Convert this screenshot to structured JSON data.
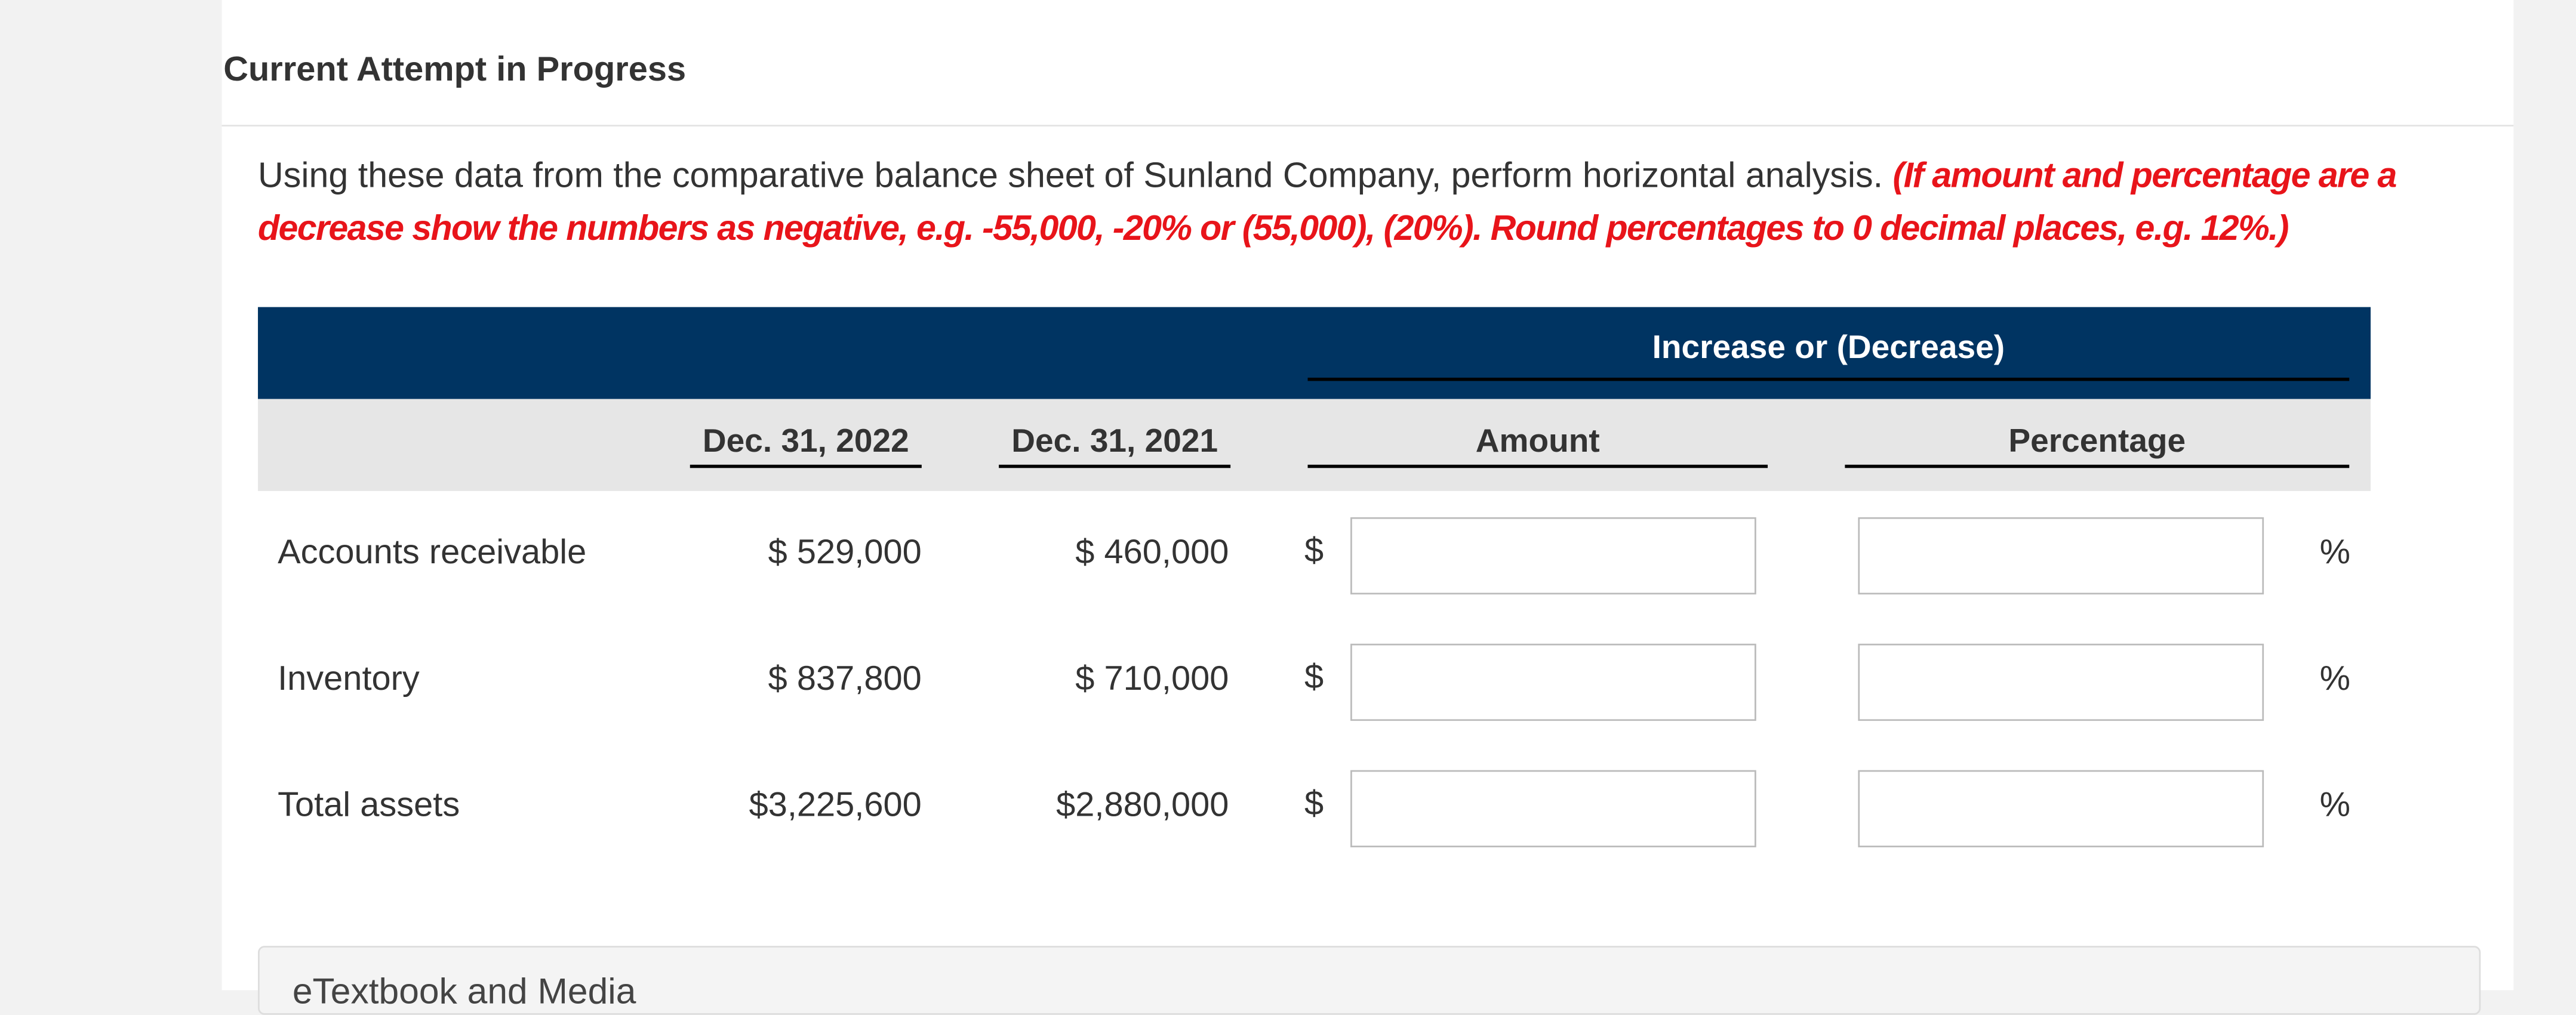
{
  "header": {
    "title": "Current Attempt in Progress"
  },
  "instructions": {
    "text": "Using these data from the comparative balance sheet of Sunland Company, perform horizontal analysis.",
    "note": "(If amount and percentage are a decrease show the numbers as negative, e.g. -55,000, -20% or (55,000), (20%). Round percentages to 0 decimal places, e.g. 12%.)"
  },
  "table": {
    "group_header": "Increase or (Decrease)",
    "columns": [
      "Dec. 31, 2022",
      "Dec. 31, 2021",
      "Amount",
      "Percentage"
    ],
    "amount_prefix": "$",
    "percent_suffix": "%",
    "rows": [
      [
        "Accounts receivable",
        "$ 529,000",
        "$ 460,000"
      ],
      [
        "Inventory",
        "$ 837,800",
        "$ 710,000"
      ],
      [
        "Total assets",
        "$3,225,600",
        "$2,880,000"
      ]
    ]
  },
  "footer": {
    "label": "eTextbook and Media"
  }
}
